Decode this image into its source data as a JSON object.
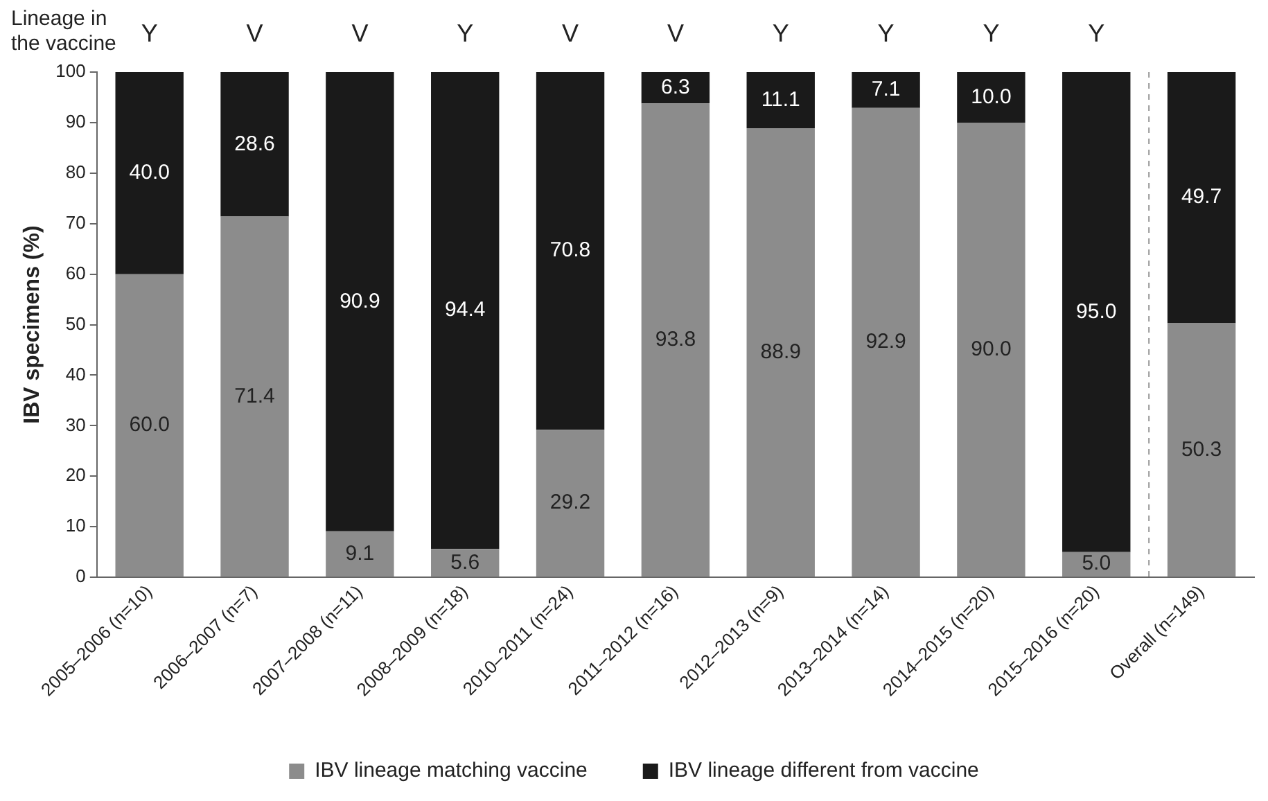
{
  "chart_data": {
    "type": "bar",
    "stacked": true,
    "ylabel": "IBV specimens (%)",
    "categories": [
      "2005–2006 (n=10)",
      "2006–2007 (n=7)",
      "2007–2008 (n=11)",
      "2008–2009 (n=18)",
      "2010–2011 (n=24)",
      "2011–2012 (n=16)",
      "2012–2013 (n=9)",
      "2013–2014 (n=14)",
      "2014–2015 (n=20)",
      "2015–2016 (n=20)",
      "Overall (n=149)"
    ],
    "series": [
      {
        "name": "IBV lineage matching vaccine",
        "color": "#8c8c8c",
        "values": [
          60.0,
          71.4,
          9.1,
          5.6,
          29.2,
          93.8,
          88.9,
          92.9,
          90.0,
          5.0,
          50.3
        ],
        "value_labels": [
          "60.0",
          "71.4",
          "9.1",
          "5.6",
          "29.2",
          "93.8",
          "88.9",
          "92.9",
          "90.0",
          "5.0",
          "50.3"
        ]
      },
      {
        "name": "IBV lineage different from vaccine",
        "color": "#1a1a1a",
        "values": [
          40.0,
          28.6,
          90.9,
          94.4,
          70.8,
          6.3,
          11.1,
          7.1,
          10.0,
          95.0,
          49.7
        ],
        "value_labels": [
          "40.0",
          "28.6",
          "90.9",
          "94.4",
          "70.8",
          "6.3",
          "11.1",
          "7.1",
          "10.0",
          "95.0",
          "49.7"
        ]
      }
    ],
    "ylim": [
      0,
      100
    ],
    "yticks": [
      0,
      10,
      20,
      30,
      40,
      50,
      60,
      70,
      80,
      90,
      100
    ],
    "grid": false,
    "legend": "bottom",
    "annotations": [
      "Lineage in the vaccine",
      "Y",
      "V",
      "V",
      "Y",
      "V",
      "V",
      "Y",
      "Y",
      "Y",
      "Y"
    ]
  }
}
